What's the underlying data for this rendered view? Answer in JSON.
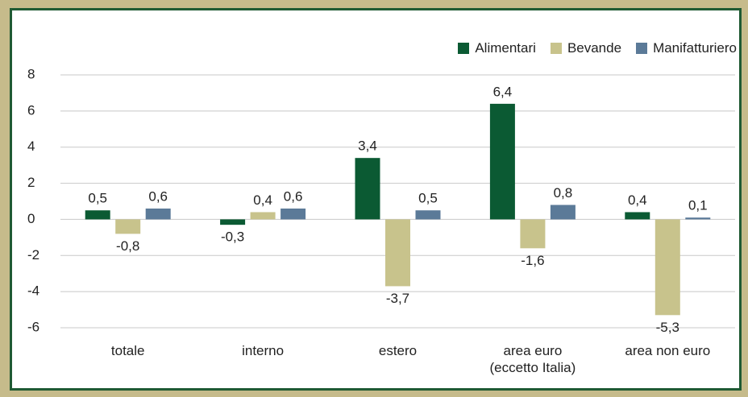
{
  "chart_data": {
    "type": "bar",
    "categories": [
      "totale",
      "interno",
      "estero",
      "area euro\n(eccetto Italia)",
      "area non euro"
    ],
    "series": [
      {
        "name": "Alimentari",
        "color": "#0b5a33",
        "values": [
          0.5,
          -0.3,
          3.4,
          6.4,
          0.4
        ],
        "value_labels": [
          "0,5",
          "-0,3",
          "3,4",
          "6,4",
          "0,4"
        ]
      },
      {
        "name": "Bevande",
        "color": "#c8c38c",
        "values": [
          -0.8,
          0.4,
          -3.7,
          -1.6,
          -5.3
        ],
        "value_labels": [
          "-0,8",
          "0,4",
          "-3,7",
          "-1,6",
          "-5,3"
        ]
      },
      {
        "name": "Manifatturiero",
        "color": "#5b7a98",
        "values": [
          0.6,
          0.6,
          0.5,
          0.8,
          0.1
        ],
        "value_labels": [
          "0,6",
          "0,6",
          "0,5",
          "0,8",
          "0,1"
        ]
      }
    ],
    "ylim": [
      -6,
      8
    ],
    "yticks": [
      -6,
      -4,
      -2,
      0,
      2,
      4,
      6,
      8
    ],
    "grid": true,
    "legend": "top-right"
  }
}
